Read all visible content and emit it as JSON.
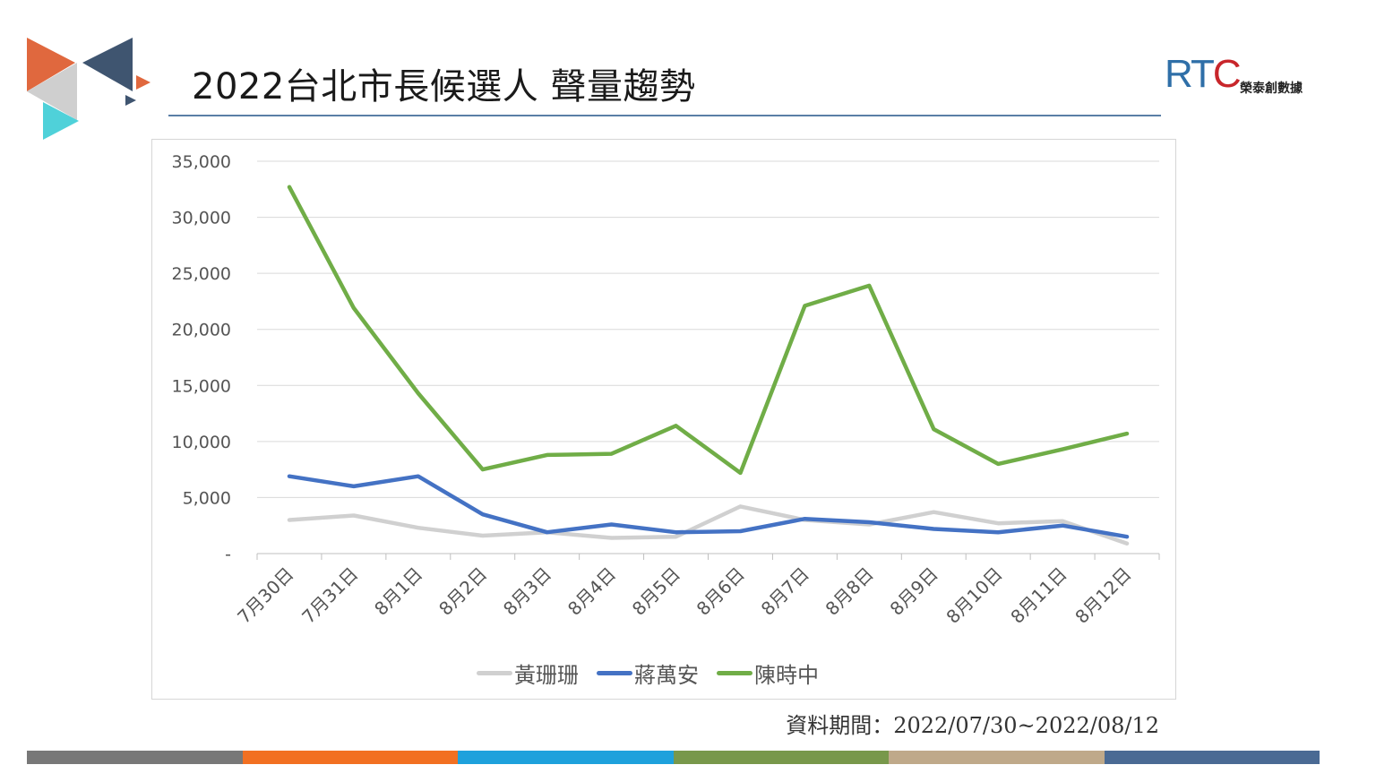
{
  "page": {
    "title": "2022台北市長候選人 聲量趨勢",
    "source_note": "資料期間：2022/07/30~2022/08/12"
  },
  "brand": {
    "logo_text_r": "RT",
    "logo_text_c": "C",
    "name": "榮泰創數據"
  },
  "logo_colors": [
    "#e0683e",
    "#3f5570",
    "#cfcfcf",
    "#4fd1d9",
    "#e0683e",
    "#3f5570"
  ],
  "footer_colors": [
    "#787878",
    "#f27022",
    "#1ea1dc",
    "#78984b",
    "#bfa98a",
    "#4a6a94"
  ],
  "chart_data": {
    "type": "line",
    "categories": [
      "7月30日",
      "7月31日",
      "8月1日",
      "8月2日",
      "8月3日",
      "8月4日",
      "8月5日",
      "8月6日",
      "8月7日",
      "8月8日",
      "8月9日",
      "8月10日",
      "8月11日",
      "8月12日"
    ],
    "ylim": [
      0,
      35000
    ],
    "ytick_labels": [
      "-",
      "5,000",
      "10,000",
      "15,000",
      "20,000",
      "25,000",
      "30,000",
      "35,000"
    ],
    "grid": true,
    "legend_position": "bottom",
    "series": [
      {
        "name": "黃珊珊",
        "color": "#d0d0d0",
        "values": [
          3000,
          3400,
          2300,
          1600,
          1900,
          1400,
          1500,
          4200,
          3000,
          2600,
          3700,
          2700,
          2900,
          900
        ]
      },
      {
        "name": "蔣萬安",
        "color": "#4472c4",
        "values": [
          6900,
          6000,
          6900,
          3500,
          1900,
          2600,
          1900,
          2000,
          3100,
          2800,
          2200,
          1900,
          2500,
          1500
        ]
      },
      {
        "name": "陳時中",
        "color": "#70ad47",
        "values": [
          32700,
          21900,
          14300,
          7500,
          8800,
          8900,
          11400,
          7200,
          22100,
          23900,
          11100,
          8000,
          9300,
          10700
        ]
      }
    ]
  }
}
